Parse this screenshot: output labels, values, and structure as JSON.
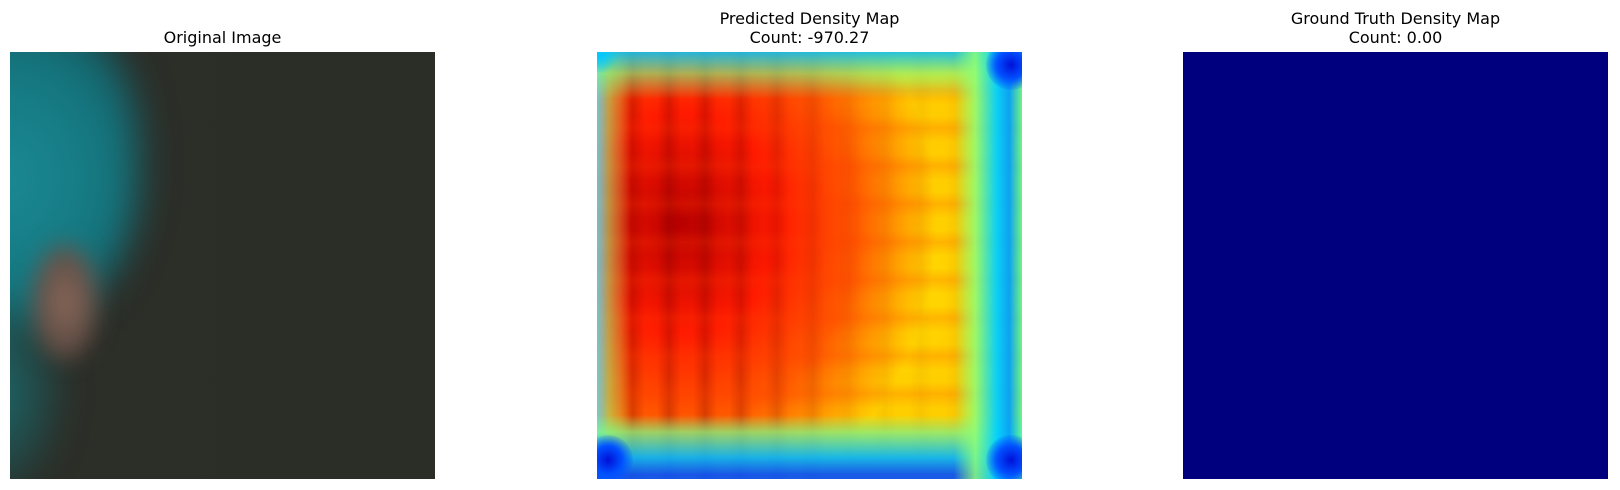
{
  "panels": {
    "original": {
      "title": "Original Image"
    },
    "predicted": {
      "title": "Predicted Density Map",
      "count_line": "Count: -970.27"
    },
    "truth": {
      "title": "Ground Truth Density Map",
      "count_line": "Count: 0.00",
      "fill_color": "#00007f"
    }
  },
  "colormap": "jet"
}
